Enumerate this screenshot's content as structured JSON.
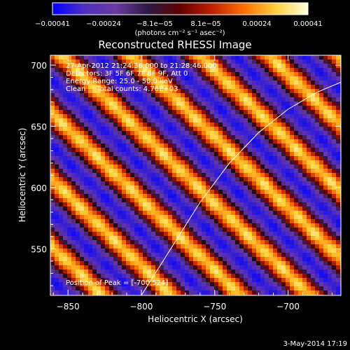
{
  "chart_data": {
    "type": "heatmap",
    "title": "Reconstructed RHESSI Image",
    "xlabel": "Heliocentric X (arcsec)",
    "ylabel": "Heliocentric Y (arcsec)",
    "xlim": [
      -862,
      -664
    ],
    "ylim": [
      512,
      708
    ],
    "x_ticks": [
      -850,
      -800,
      -750,
      -700
    ],
    "y_ticks": [
      550,
      600,
      650,
      700
    ],
    "x_tick_labels": [
      "−850",
      "−800",
      "−750",
      "−700"
    ],
    "y_tick_labels": [
      "550",
      "600",
      "650",
      "700"
    ],
    "colorbar": {
      "range": [
        -0.00041,
        0.00041
      ],
      "tick_labels": [
        "−0.00041",
        "−0.00024",
        "−8.1e−05",
        "8.1e−05",
        "0.00024",
        "0.00041"
      ],
      "unit_label": "(photons cm⁻² s⁻¹ asec⁻²)",
      "colors": [
        "#0000ff",
        "#5030c0",
        "#6a3aa0",
        "#2a1a40",
        "#600000",
        "#c02000",
        "#ff7000",
        "#ffd040",
        "#ffffe0"
      ]
    },
    "annotations": [
      "27-Apr-2012 21:24:36.000 to 21:28:46.000",
      "Detectors: 3F 5F 6F 7F 8F 9F, Att 0",
      "Energy Range: 25.0 - 50.0 keV",
      "Clean     Total counts: 4.76E+03",
      "Position of Peak = [-700,524]"
    ],
    "limb_curve": {
      "x": [
        -800,
        -780,
        -760,
        -740,
        -720,
        -700,
        -680,
        -664
      ],
      "y": [
        512,
        550,
        588,
        620,
        645,
        664,
        678,
        686
      ]
    },
    "peak": {
      "x": -700,
      "y": 524
    },
    "grid": false
  },
  "footer": {
    "date": "3-May-2014 17:19"
  }
}
